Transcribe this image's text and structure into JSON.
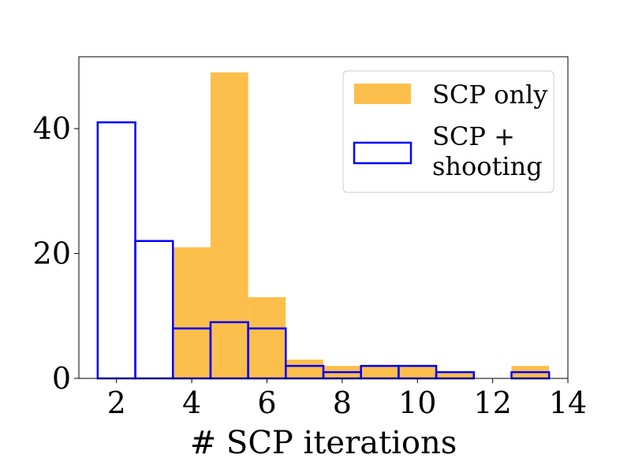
{
  "chart_data": {
    "type": "bar",
    "subtype": "histogram",
    "xlabel": "# SCP iterations",
    "ylabel": "",
    "xlim": [
      1,
      14
    ],
    "ylim": [
      0,
      51.5
    ],
    "xticks": [
      2,
      4,
      6,
      8,
      10,
      12,
      14
    ],
    "yticks": [
      0,
      20,
      40
    ],
    "grid": false,
    "legend_position": "top-right",
    "bin_centers": [
      2,
      3,
      4,
      5,
      6,
      7,
      8,
      9,
      10,
      11,
      12,
      13
    ],
    "bin_width": 1,
    "series": [
      {
        "name": "SCP only",
        "style": "filled",
        "color": "#fdbf4b",
        "values": [
          0,
          0,
          21,
          49,
          13,
          3,
          2,
          2,
          2,
          1,
          0,
          2
        ]
      },
      {
        "name": "SCP +\nshooting",
        "style": "outline",
        "color": "#0000ff",
        "values": [
          41,
          22,
          8,
          9,
          8,
          2,
          1,
          2,
          2,
          1,
          0,
          1
        ]
      }
    ],
    "legend": [
      {
        "label_lines": [
          "SCP only"
        ],
        "style": "filled",
        "color": "#fdbf4b"
      },
      {
        "label_lines": [
          "SCP +",
          "shooting"
        ],
        "style": "outline",
        "color": "#0000ff"
      }
    ]
  }
}
